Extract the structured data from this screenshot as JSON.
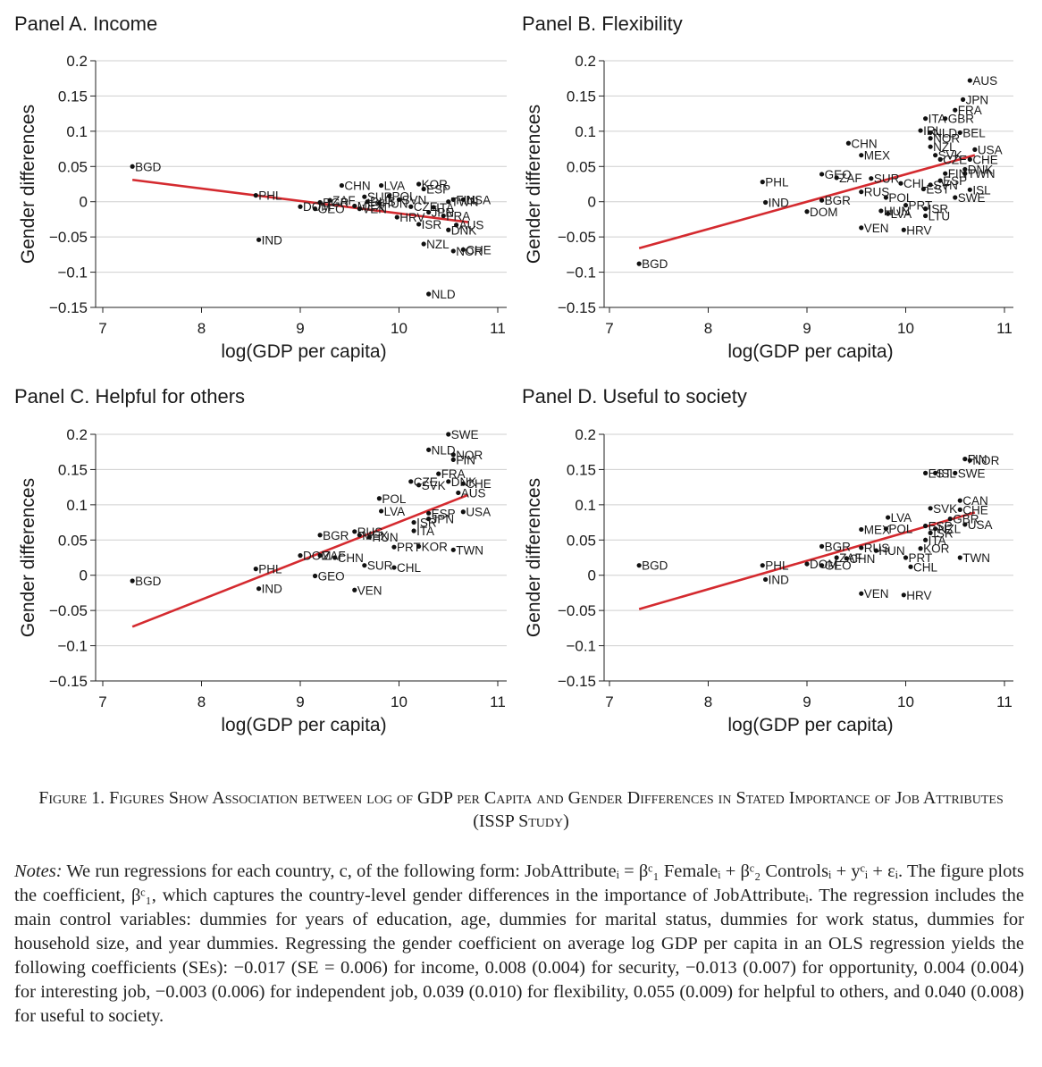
{
  "chart_data": [
    {
      "type": "scatter",
      "title": "Panel A. Income",
      "xlabel": "log(GDP per capita)",
      "ylabel": "Gender differences",
      "xlim": [
        7,
        11
      ],
      "ylim": [
        -0.15,
        0.2
      ],
      "xticks": [
        7,
        8,
        9,
        10,
        11
      ],
      "yticks": [
        -0.15,
        -0.1,
        -0.05,
        0,
        0.05,
        0.1,
        0.15,
        0.2
      ],
      "ytick_labels": [
        "−0.15",
        "−0.1",
        "−0.05",
        "0",
        "0.05",
        "0.1",
        "0.15",
        "0.2"
      ],
      "grid": true,
      "fit_line": {
        "x": [
          7.3,
          10.7
        ],
        "y": [
          0.031,
          -0.029
        ],
        "color": "#d42a2f"
      },
      "points": [
        {
          "label": "BGD",
          "x": 7.3,
          "y": 0.05
        },
        {
          "label": "PHL",
          "x": 8.55,
          "y": 0.009
        },
        {
          "label": "IND",
          "x": 8.58,
          "y": -0.054
        },
        {
          "label": "DOM",
          "x": 9.0,
          "y": -0.007
        },
        {
          "label": "BGR",
          "x": 9.2,
          "y": -0.001
        },
        {
          "label": "GEO",
          "x": 9.15,
          "y": -0.01
        },
        {
          "label": "ZAF",
          "x": 9.3,
          "y": 0.002
        },
        {
          "label": "CHN",
          "x": 9.42,
          "y": 0.023
        },
        {
          "label": "MEX",
          "x": 9.55,
          "y": -0.006
        },
        {
          "label": "SUR",
          "x": 9.65,
          "y": 0.007
        },
        {
          "label": "RUS",
          "x": 9.68,
          "y": 0.0
        },
        {
          "label": "VEN",
          "x": 9.6,
          "y": -0.01
        },
        {
          "label": "LVA",
          "x": 9.82,
          "y": 0.023
        },
        {
          "label": "HUN",
          "x": 9.8,
          "y": -0.002
        },
        {
          "label": "POL",
          "x": 9.9,
          "y": 0.008
        },
        {
          "label": "SVN",
          "x": 10.0,
          "y": 0.003
        },
        {
          "label": "HRV",
          "x": 9.98,
          "y": -0.022
        },
        {
          "label": "CZE",
          "x": 10.12,
          "y": -0.007
        },
        {
          "label": "KOR",
          "x": 10.2,
          "y": 0.025
        },
        {
          "label": "ESP",
          "x": 10.25,
          "y": 0.018
        },
        {
          "label": "JPN",
          "x": 10.3,
          "y": -0.015
        },
        {
          "label": "ISR",
          "x": 10.2,
          "y": -0.032
        },
        {
          "label": "NZL",
          "x": 10.25,
          "y": -0.06
        },
        {
          "label": "ITA",
          "x": 10.35,
          "y": -0.008
        },
        {
          "label": "TWN",
          "x": 10.5,
          "y": 0.0
        },
        {
          "label": "FRA",
          "x": 10.45,
          "y": -0.02
        },
        {
          "label": "DNK",
          "x": 10.5,
          "y": -0.04
        },
        {
          "label": "FIN",
          "x": 10.55,
          "y": 0.003
        },
        {
          "label": "USA",
          "x": 10.65,
          "y": 0.003
        },
        {
          "label": "AUS",
          "x": 10.58,
          "y": -0.033
        },
        {
          "label": "NOR",
          "x": 10.55,
          "y": -0.07
        },
        {
          "label": "CHE",
          "x": 10.65,
          "y": -0.068
        },
        {
          "label": "NLD",
          "x": 10.3,
          "y": -0.131
        }
      ]
    },
    {
      "type": "scatter",
      "title": "Panel B. Flexibility",
      "xlabel": "log(GDP per capita)",
      "ylabel": "Gender differences",
      "xlim": [
        7,
        11
      ],
      "ylim": [
        -0.15,
        0.2
      ],
      "xticks": [
        7,
        8,
        9,
        10,
        11
      ],
      "yticks": [
        -0.15,
        -0.1,
        -0.05,
        0,
        0.05,
        0.1,
        0.15,
        0.2
      ],
      "ytick_labels": [
        "−0.15",
        "−0.1",
        "−0.05",
        "0",
        "0.05",
        "0.1",
        "0.15",
        "0.2"
      ],
      "grid": true,
      "fit_line": {
        "x": [
          7.3,
          10.7
        ],
        "y": [
          -0.066,
          0.066
        ],
        "color": "#d42a2f"
      },
      "points": [
        {
          "label": "BGD",
          "x": 7.3,
          "y": -0.088
        },
        {
          "label": "PHL",
          "x": 8.55,
          "y": 0.028
        },
        {
          "label": "IND",
          "x": 8.58,
          "y": -0.001
        },
        {
          "label": "DOM",
          "x": 9.0,
          "y": -0.014
        },
        {
          "label": "GEO",
          "x": 9.15,
          "y": 0.039
        },
        {
          "label": "BGR",
          "x": 9.15,
          "y": 0.002
        },
        {
          "label": "ZAF",
          "x": 9.3,
          "y": 0.034
        },
        {
          "label": "CHN",
          "x": 9.42,
          "y": 0.083
        },
        {
          "label": "MEX",
          "x": 9.55,
          "y": 0.066
        },
        {
          "label": "SUR",
          "x": 9.65,
          "y": 0.033
        },
        {
          "label": "RUS",
          "x": 9.55,
          "y": 0.014
        },
        {
          "label": "VEN",
          "x": 9.55,
          "y": -0.037
        },
        {
          "label": "POL",
          "x": 9.8,
          "y": 0.006
        },
        {
          "label": "HUN",
          "x": 9.75,
          "y": -0.013
        },
        {
          "label": "LVA",
          "x": 9.82,
          "y": -0.017
        },
        {
          "label": "HRV",
          "x": 9.98,
          "y": -0.04
        },
        {
          "label": "PRT",
          "x": 10.0,
          "y": -0.005
        },
        {
          "label": "CHL",
          "x": 9.95,
          "y": 0.026
        },
        {
          "label": "ISR",
          "x": 10.2,
          "y": -0.01
        },
        {
          "label": "LTU",
          "x": 10.2,
          "y": -0.02
        },
        {
          "label": "EST",
          "x": 10.18,
          "y": 0.018
        },
        {
          "label": "SWE",
          "x": 10.5,
          "y": 0.006
        },
        {
          "label": "ISL",
          "x": 10.65,
          "y": 0.017
        },
        {
          "label": "ITA",
          "x": 10.2,
          "y": 0.118
        },
        {
          "label": "GBR",
          "x": 10.4,
          "y": 0.118
        },
        {
          "label": "FRA",
          "x": 10.5,
          "y": 0.13
        },
        {
          "label": "JPN",
          "x": 10.58,
          "y": 0.145
        },
        {
          "label": "AUS",
          "x": 10.65,
          "y": 0.172
        },
        {
          "label": "IRL",
          "x": 10.15,
          "y": 0.101
        },
        {
          "label": "NLD",
          "x": 10.25,
          "y": 0.098
        },
        {
          "label": "BEL",
          "x": 10.55,
          "y": 0.098
        },
        {
          "label": "NOR",
          "x": 10.25,
          "y": 0.09
        },
        {
          "label": "NZL",
          "x": 10.25,
          "y": 0.078
        },
        {
          "label": "SVK",
          "x": 10.3,
          "y": 0.066
        },
        {
          "label": "CZE",
          "x": 10.35,
          "y": 0.06
        },
        {
          "label": "USA",
          "x": 10.7,
          "y": 0.074
        },
        {
          "label": "CHE",
          "x": 10.65,
          "y": 0.06
        },
        {
          "label": "DNK",
          "x": 10.6,
          "y": 0.046
        },
        {
          "label": "TWN",
          "x": 10.6,
          "y": 0.04
        },
        {
          "label": "FIN",
          "x": 10.4,
          "y": 0.04
        },
        {
          "label": "ESP",
          "x": 10.35,
          "y": 0.03
        },
        {
          "label": "SVN",
          "x": 10.25,
          "y": 0.024
        }
      ]
    },
    {
      "type": "scatter",
      "title": "Panel C. Helpful for others",
      "xlabel": "log(GDP per capita)",
      "ylabel": "Gender differences",
      "xlim": [
        7,
        11
      ],
      "ylim": [
        -0.15,
        0.2
      ],
      "xticks": [
        7,
        8,
        9,
        10,
        11
      ],
      "yticks": [
        -0.15,
        -0.1,
        -0.05,
        0,
        0.05,
        0.1,
        0.15,
        0.2
      ],
      "ytick_labels": [
        "−0.15",
        "−0.1",
        "−0.05",
        "0",
        "0.05",
        "0.1",
        "0.15",
        "0.2"
      ],
      "grid": true,
      "fit_line": {
        "x": [
          7.3,
          10.7
        ],
        "y": [
          -0.073,
          0.114
        ],
        "color": "#d42a2f"
      },
      "points": [
        {
          "label": "BGD",
          "x": 7.3,
          "y": -0.008
        },
        {
          "label": "PHL",
          "x": 8.55,
          "y": 0.009
        },
        {
          "label": "IND",
          "x": 8.58,
          "y": -0.019
        },
        {
          "label": "GEO",
          "x": 9.15,
          "y": -0.001
        },
        {
          "label": "DOM",
          "x": 9.0,
          "y": 0.028
        },
        {
          "label": "ZAF",
          "x": 9.2,
          "y": 0.028
        },
        {
          "label": "CHN",
          "x": 9.35,
          "y": 0.025
        },
        {
          "label": "BGR",
          "x": 9.2,
          "y": 0.057
        },
        {
          "label": "RUS",
          "x": 9.55,
          "y": 0.062
        },
        {
          "label": "MEX",
          "x": 9.6,
          "y": 0.057
        },
        {
          "label": "HUN",
          "x": 9.7,
          "y": 0.054
        },
        {
          "label": "VEN",
          "x": 9.55,
          "y": -0.021
        },
        {
          "label": "SUR",
          "x": 9.65,
          "y": 0.014
        },
        {
          "label": "CHL",
          "x": 9.95,
          "y": 0.011
        },
        {
          "label": "POL",
          "x": 9.8,
          "y": 0.109
        },
        {
          "label": "LVA",
          "x": 9.82,
          "y": 0.091
        },
        {
          "label": "PRT",
          "x": 9.95,
          "y": 0.04
        },
        {
          "label": "KOR",
          "x": 10.2,
          "y": 0.041
        },
        {
          "label": "TWN",
          "x": 10.55,
          "y": 0.036
        },
        {
          "label": "ITA",
          "x": 10.15,
          "y": 0.063
        },
        {
          "label": "ISR",
          "x": 10.15,
          "y": 0.075
        },
        {
          "label": "JPN",
          "x": 10.3,
          "y": 0.08
        },
        {
          "label": "ESP",
          "x": 10.3,
          "y": 0.088
        },
        {
          "label": "USA",
          "x": 10.65,
          "y": 0.09
        },
        {
          "label": "AUS",
          "x": 10.6,
          "y": 0.117
        },
        {
          "label": "CHE",
          "x": 10.65,
          "y": 0.13
        },
        {
          "label": "SVK",
          "x": 10.2,
          "y": 0.128
        },
        {
          "label": "CZE",
          "x": 10.12,
          "y": 0.133
        },
        {
          "label": "FRA",
          "x": 10.4,
          "y": 0.144
        },
        {
          "label": "DNK",
          "x": 10.5,
          "y": 0.133
        },
        {
          "label": "NLD",
          "x": 10.3,
          "y": 0.178
        },
        {
          "label": "NOR",
          "x": 10.55,
          "y": 0.171
        },
        {
          "label": "FIN",
          "x": 10.55,
          "y": 0.164
        },
        {
          "label": "SWE",
          "x": 10.5,
          "y": 0.2
        }
      ]
    },
    {
      "type": "scatter",
      "title": "Panel D. Useful to society",
      "xlabel": "log(GDP per capita)",
      "ylabel": "Gender differences",
      "xlim": [
        7,
        11
      ],
      "ylim": [
        -0.15,
        0.2
      ],
      "xticks": [
        7,
        8,
        9,
        10,
        11
      ],
      "yticks": [
        -0.15,
        -0.1,
        -0.05,
        0,
        0.05,
        0.1,
        0.15,
        0.2
      ],
      "ytick_labels": [
        "−0.15",
        "−0.1",
        "−0.05",
        "0",
        "0.05",
        "0.1",
        "0.15",
        "0.2"
      ],
      "grid": true,
      "fit_line": {
        "x": [
          7.3,
          10.7
        ],
        "y": [
          -0.048,
          0.089
        ],
        "color": "#d42a2f"
      },
      "points": [
        {
          "label": "BGD",
          "x": 7.3,
          "y": 0.014
        },
        {
          "label": "PHL",
          "x": 8.55,
          "y": 0.014
        },
        {
          "label": "IND",
          "x": 8.58,
          "y": -0.006
        },
        {
          "label": "DOM",
          "x": 9.0,
          "y": 0.016
        },
        {
          "label": "GEO",
          "x": 9.15,
          "y": 0.014
        },
        {
          "label": "ZAF",
          "x": 9.3,
          "y": 0.025
        },
        {
          "label": "CHN",
          "x": 9.4,
          "y": 0.024
        },
        {
          "label": "BGR",
          "x": 9.15,
          "y": 0.041
        },
        {
          "label": "RUS",
          "x": 9.55,
          "y": 0.039
        },
        {
          "label": "HUN",
          "x": 9.7,
          "y": 0.035
        },
        {
          "label": "MEX",
          "x": 9.55,
          "y": 0.065
        },
        {
          "label": "POL",
          "x": 9.8,
          "y": 0.066
        },
        {
          "label": "LVA",
          "x": 9.82,
          "y": 0.082
        },
        {
          "label": "VEN",
          "x": 9.55,
          "y": -0.026
        },
        {
          "label": "HRV",
          "x": 9.98,
          "y": -0.028
        },
        {
          "label": "PRT",
          "x": 10.0,
          "y": 0.025
        },
        {
          "label": "KOR",
          "x": 10.15,
          "y": 0.038
        },
        {
          "label": "CHL",
          "x": 10.05,
          "y": 0.012
        },
        {
          "label": "TWN",
          "x": 10.55,
          "y": 0.025
        },
        {
          "label": "USA",
          "x": 10.6,
          "y": 0.072
        },
        {
          "label": "CAN",
          "x": 10.55,
          "y": 0.106
        },
        {
          "label": "SVK",
          "x": 10.25,
          "y": 0.095
        },
        {
          "label": "CHE",
          "x": 10.55,
          "y": 0.093
        },
        {
          "label": "ESP",
          "x": 10.2,
          "y": 0.07
        },
        {
          "label": "ISR",
          "x": 10.25,
          "y": 0.06
        },
        {
          "label": "ITA",
          "x": 10.2,
          "y": 0.05
        },
        {
          "label": "NZL",
          "x": 10.3,
          "y": 0.066
        },
        {
          "label": "GBR",
          "x": 10.45,
          "y": 0.08
        },
        {
          "label": "EST",
          "x": 10.2,
          "y": 0.145
        },
        {
          "label": "ISL",
          "x": 10.3,
          "y": 0.145
        },
        {
          "label": "SWE",
          "x": 10.5,
          "y": 0.145
        },
        {
          "label": "FIN",
          "x": 10.6,
          "y": 0.165
        },
        {
          "label": "NOR",
          "x": 10.65,
          "y": 0.163
        }
      ]
    }
  ],
  "caption": {
    "figure_label": "Figure 1.",
    "text": "Figures Show Association between log of GDP per Capita and Gender Differences in Stated Importance of Job Attributes (ISSP Study)"
  },
  "notes": {
    "lead": "Notes:",
    "text": "We run regressions for each country, c, of the following form: JobAttributeᵢ = βᶜ₁ Femaleᵢ + βᶜ₂ Controlsᵢ + yᶜᵢ + εᵢ. The figure plots the coefficient, βᶜ₁, which captures the country-level gender differences in the importance of JobAttributeᵢ. The regression includes the main control variables: dummies for years of education, age, dummies for marital status, dummies for work status, dummies for household size, and year dummies. Regressing the gender coefficient on average log GDP per capita in an OLS regression yields the following coefficients (SEs): −0.017 (SE = 0.006) for income, 0.008 (0.004) for security, −0.013 (0.007) for opportunity, 0.004 (0.004) for interesting job, −0.003 (0.006) for independent job, 0.039 (0.010) for flexibility, 0.055 (0.009) for helpful to others, and 0.040 (0.008) for useful to society."
  }
}
